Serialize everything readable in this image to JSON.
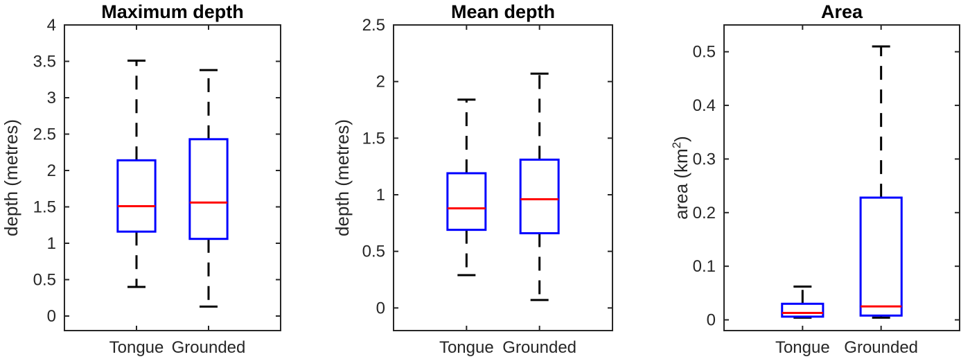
{
  "chart_data": [
    {
      "type": "box",
      "title": "Maximum depth",
      "ylabel": "depth (metres)",
      "ylabel_sup": "",
      "ylabel_after": "",
      "ylim": [
        -0.2,
        4
      ],
      "yticks": [
        0,
        0.5,
        1,
        1.5,
        2,
        2.5,
        3,
        3.5,
        4
      ],
      "ytick_labels": [
        "0",
        "0.5",
        "1",
        "1.5",
        "2",
        "2.5",
        "3",
        "3.5",
        "4"
      ],
      "categories": [
        "Tongue",
        "Grounded"
      ],
      "boxes": [
        {
          "min": 0.4,
          "q1": 1.16,
          "median": 1.51,
          "q3": 2.14,
          "max": 3.51
        },
        {
          "min": 0.13,
          "q1": 1.06,
          "median": 1.56,
          "q3": 2.43,
          "max": 3.38
        }
      ],
      "grid": false
    },
    {
      "type": "box",
      "title": "Mean depth",
      "ylabel": "depth (metres)",
      "ylabel_sup": "",
      "ylabel_after": "",
      "ylim": [
        -0.2,
        2.5
      ],
      "yticks": [
        0,
        0.5,
        1,
        1.5,
        2,
        2.5
      ],
      "ytick_labels": [
        "0",
        "0.5",
        "1",
        "1.5",
        "2",
        "2.5"
      ],
      "categories": [
        "Tongue",
        "Grounded"
      ],
      "boxes": [
        {
          "min": 0.29,
          "q1": 0.69,
          "median": 0.88,
          "q3": 1.19,
          "max": 1.84
        },
        {
          "min": 0.07,
          "q1": 0.66,
          "median": 0.96,
          "q3": 1.31,
          "max": 2.07
        }
      ],
      "grid": false
    },
    {
      "type": "box",
      "title": "Area",
      "ylabel": "area (km",
      "ylabel_sup": "2",
      "ylabel_after": ")",
      "ylim": [
        -0.02,
        0.55
      ],
      "yticks": [
        0,
        0.1,
        0.2,
        0.3,
        0.4,
        0.5
      ],
      "ytick_labels": [
        "0",
        "0.1",
        "0.2",
        "0.3",
        "0.4",
        "0.5"
      ],
      "categories": [
        "Tongue",
        "Grounded"
      ],
      "boxes": [
        {
          "min": 0.004,
          "q1": 0.006,
          "median": 0.013,
          "q3": 0.03,
          "max": 0.062
        },
        {
          "min": 0.004,
          "q1": 0.008,
          "median": 0.025,
          "q3": 0.228,
          "max": 0.51
        }
      ],
      "grid": false
    }
  ]
}
